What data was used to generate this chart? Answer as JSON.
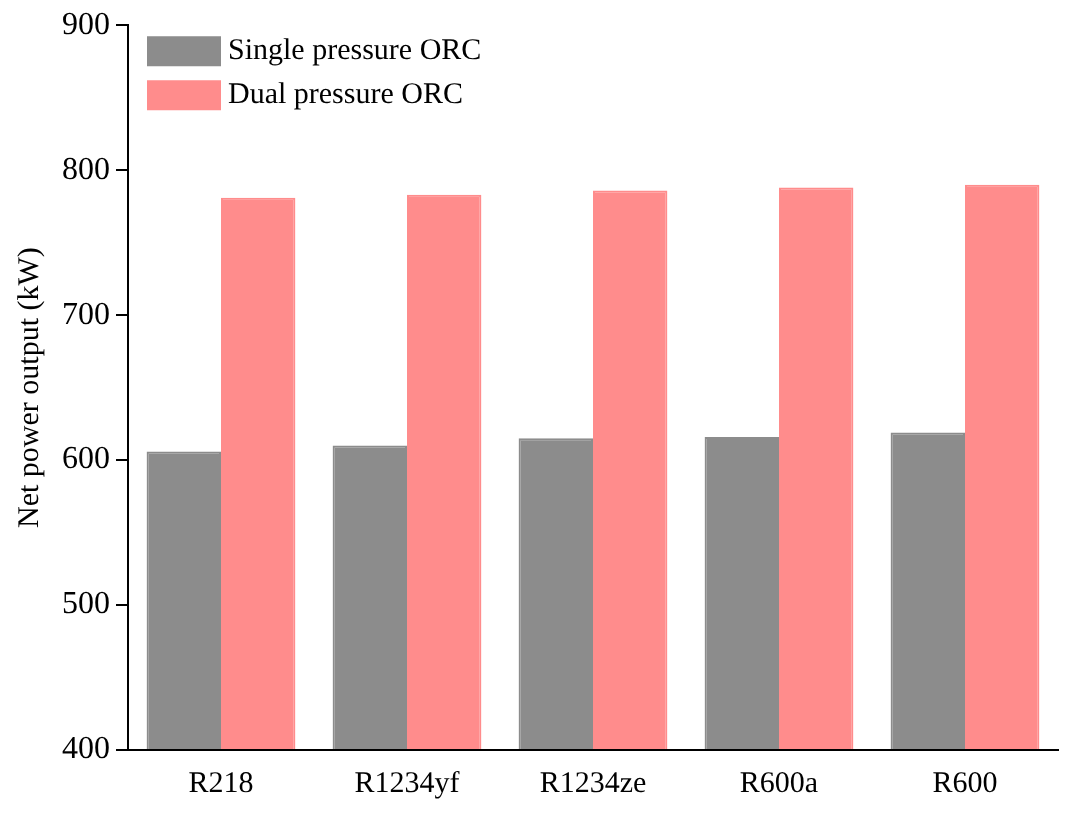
{
  "chart_data": {
    "type": "bar",
    "ylabel": "Net power output (kW)",
    "categories": [
      "R218",
      "R1234yf",
      "R1234ze",
      "R600a",
      "R600"
    ],
    "series": [
      {
        "name": "Single pressure ORC",
        "color": "#8c8c8c",
        "values": [
          606,
          610,
          615,
          616,
          619
        ]
      },
      {
        "name": "Dual pressure ORC",
        "color": "#ff8c8c",
        "values": [
          781,
          783,
          786,
          788,
          790
        ]
      }
    ],
    "ylim": [
      400,
      900
    ],
    "yticks": [
      400,
      500,
      600,
      700,
      800,
      900
    ],
    "grid": false,
    "legend": "top left"
  }
}
